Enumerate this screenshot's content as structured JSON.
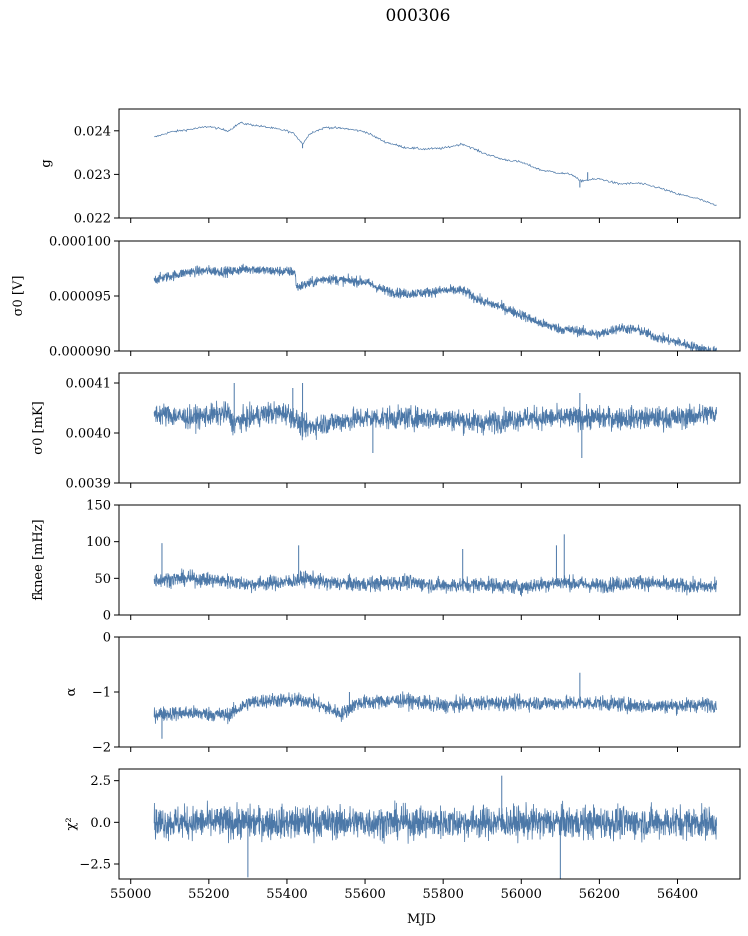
{
  "figure": {
    "title": "000306"
  },
  "colors": {
    "series": "#4c78a8",
    "axes": "#000000",
    "background": "#ffffff"
  },
  "chart_data": [
    {
      "type": "line",
      "ylabel": "g",
      "ylim": [
        0.022,
        0.0245
      ],
      "yticks": [
        0.022,
        0.023,
        0.024
      ],
      "ytick_labels": [
        "0.022",
        "0.023",
        "0.024"
      ],
      "xlim": [
        54970,
        56560
      ],
      "x_span": [
        55060,
        56500
      ],
      "profile_x": [
        55060,
        55100,
        55150,
        55200,
        55250,
        55280,
        55350,
        55400,
        55420,
        55440,
        55460,
        55500,
        55550,
        55600,
        55650,
        55700,
        55750,
        55800,
        55850,
        55900,
        55950,
        56000,
        56050,
        56100,
        56130,
        56150,
        56200,
        56250,
        56300,
        56350,
        56400,
        56450,
        56500
      ],
      "profile_y": [
        0.02385,
        0.02397,
        0.02403,
        0.0241,
        0.024,
        0.02418,
        0.02408,
        0.024,
        0.02392,
        0.0237,
        0.02395,
        0.02408,
        0.02405,
        0.02398,
        0.02375,
        0.02362,
        0.02358,
        0.0236,
        0.0237,
        0.0235,
        0.02335,
        0.02328,
        0.0231,
        0.02303,
        0.023,
        0.02285,
        0.0229,
        0.02278,
        0.0228,
        0.0227,
        0.02255,
        0.02245,
        0.02228
      ],
      "noise": 2.5e-05,
      "features": [
        {
          "x": 55440,
          "y": 0.0236
        },
        {
          "x": 56150,
          "y": 0.0227
        },
        {
          "x": 56170,
          "y": 0.02305
        }
      ]
    },
    {
      "type": "line",
      "ylabel": "σ0 [V]",
      "ylim": [
        9e-05,
        0.0001
      ],
      "yticks": [
        9e-05,
        9.5e-05,
        0.0001
      ],
      "ytick_labels": [
        "0.000090",
        "0.000095",
        "0.000100"
      ],
      "xlim": [
        54970,
        56560
      ],
      "x_span": [
        55060,
        56500
      ],
      "profile_x": [
        55060,
        55100,
        55150,
        55200,
        55250,
        55300,
        55350,
        55420,
        55425,
        55500,
        55550,
        55600,
        55650,
        55700,
        55750,
        55800,
        55850,
        55900,
        55950,
        56000,
        56050,
        56100,
        56150,
        56200,
        56250,
        56300,
        56350,
        56400,
        56450,
        56500
      ],
      "profile_y": [
        9.65e-05,
        9.68e-05,
        9.72e-05,
        9.73e-05,
        9.72e-05,
        9.75e-05,
        9.73e-05,
        9.72e-05,
        9.58e-05,
        9.66e-05,
        9.64e-05,
        9.63e-05,
        9.55e-05,
        9.52e-05,
        9.53e-05,
        9.55e-05,
        9.55e-05,
        9.45e-05,
        9.4e-05,
        9.33e-05,
        9.25e-05,
        9.2e-05,
        9.18e-05,
        9.15e-05,
        9.21e-05,
        9.19e-05,
        9.12e-05,
        9.08e-05,
        9.03e-05,
        8.99e-05
      ],
      "noise": 4.5e-07,
      "features": []
    },
    {
      "type": "line",
      "ylabel": "σ0 [mK]",
      "ylim": [
        0.0039,
        0.00412
      ],
      "yticks": [
        0.0039,
        0.004,
        0.0041
      ],
      "ytick_labels": [
        "0.0039",
        "0.0040",
        "0.0041"
      ],
      "xlim": [
        54970,
        56560
      ],
      "x_span": [
        55060,
        56500
      ],
      "profile_x": [
        55060,
        55150,
        55250,
        55260,
        55350,
        55400,
        55420,
        55440,
        55500,
        55600,
        55700,
        55800,
        55900,
        56000,
        56100,
        56200,
        56300,
        56400,
        56500
      ],
      "profile_y": [
        0.00404,
        0.00403,
        0.00404,
        0.00402,
        0.00404,
        0.00404,
        0.00403,
        0.00401,
        0.00402,
        0.00403,
        0.00403,
        0.00403,
        0.00402,
        0.00403,
        0.00403,
        0.00403,
        0.00403,
        0.00403,
        0.00404
      ],
      "noise": 2.2e-05,
      "features": [
        {
          "x": 55265,
          "y": 0.0041
        },
        {
          "x": 55415,
          "y": 0.00409
        },
        {
          "x": 55440,
          "y": 0.0041
        },
        {
          "x": 55620,
          "y": 0.00396
        },
        {
          "x": 56150,
          "y": 0.00408
        },
        {
          "x": 56155,
          "y": 0.00395
        }
      ]
    },
    {
      "type": "line",
      "ylabel": "fknee [mHz]",
      "ylim": [
        0,
        150
      ],
      "yticks": [
        0,
        50,
        100,
        150
      ],
      "ytick_labels": [
        "0",
        "50",
        "100",
        "150"
      ],
      "xlim": [
        54970,
        56560
      ],
      "x_span": [
        55060,
        56500
      ],
      "profile_x": [
        55060,
        55150,
        55250,
        55300,
        55400,
        55450,
        55500,
        55600,
        55700,
        55800,
        55900,
        56000,
        56100,
        56200,
        56300,
        56400,
        56500
      ],
      "profile_y": [
        48,
        50,
        46,
        42,
        45,
        50,
        44,
        42,
        45,
        40,
        42,
        38,
        45,
        40,
        45,
        40,
        38
      ],
      "noise": 10,
      "features": [
        {
          "x": 55080,
          "y": 98
        },
        {
          "x": 55430,
          "y": 95
        },
        {
          "x": 55850,
          "y": 90
        },
        {
          "x": 56110,
          "y": 110
        },
        {
          "x": 56090,
          "y": 95
        }
      ]
    },
    {
      "type": "line",
      "ylabel": "α",
      "ylim": [
        -2,
        0
      ],
      "yticks": [
        -2,
        -1,
        0
      ],
      "ytick_labels": [
        "−2",
        "−1",
        "0"
      ],
      "xlim": [
        54970,
        56560
      ],
      "x_span": [
        55060,
        56500
      ],
      "profile_x": [
        55060,
        55150,
        55250,
        55300,
        55350,
        55450,
        55540,
        55580,
        55700,
        55800,
        55900,
        56000,
        56100,
        56200,
        56300,
        56400,
        56500
      ],
      "profile_y": [
        -1.4,
        -1.38,
        -1.42,
        -1.2,
        -1.15,
        -1.15,
        -1.4,
        -1.2,
        -1.15,
        -1.25,
        -1.2,
        -1.2,
        -1.2,
        -1.2,
        -1.25,
        -1.25,
        -1.22
      ],
      "noise": 0.13,
      "features": [
        {
          "x": 55560,
          "y": -1.0
        },
        {
          "x": 55080,
          "y": -1.85
        },
        {
          "x": 56150,
          "y": -0.65
        }
      ]
    },
    {
      "type": "line",
      "ylabel": "χ²",
      "ylim": [
        -3.4,
        3.2
      ],
      "yticks": [
        -2.5,
        0,
        2.5
      ],
      "ytick_labels": [
        "−2.5",
        "0.0",
        "2.5"
      ],
      "xlim": [
        54970,
        56560
      ],
      "x_span": [
        55060,
        56500
      ],
      "xticks": [
        55000,
        55200,
        55400,
        55600,
        55800,
        56000,
        56200,
        56400
      ],
      "xtick_labels": [
        "55000",
        "55200",
        "55400",
        "55600",
        "55800",
        "56000",
        "56200",
        "56400"
      ],
      "xlabel": "MJD",
      "profile_x": [
        55060,
        56500
      ],
      "profile_y": [
        0,
        0
      ],
      "noise": 0.95,
      "features": [
        {
          "x": 55300,
          "y": -3.3
        },
        {
          "x": 55950,
          "y": 2.8
        },
        {
          "x": 56100,
          "y": -3.4
        }
      ]
    }
  ]
}
